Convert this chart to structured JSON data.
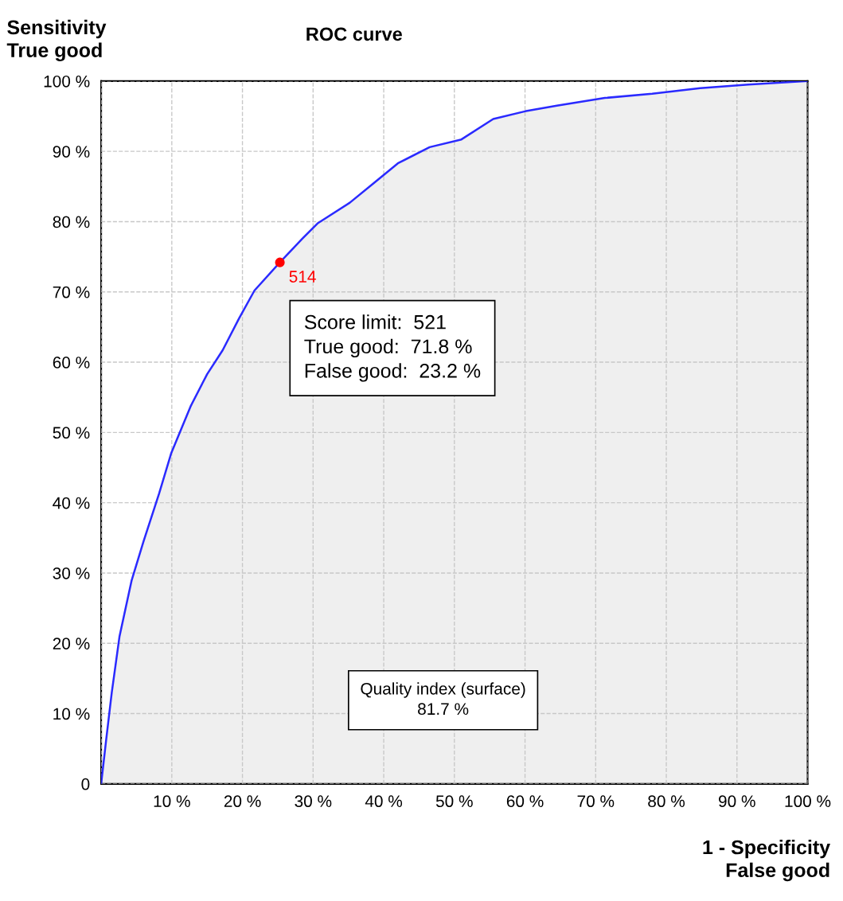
{
  "chart_data": {
    "type": "area",
    "title": "ROC curve",
    "xlabel": "1 - Specificity\nFalse good",
    "ylabel": "Sensitivity\nTrue good",
    "xlim": [
      0,
      100
    ],
    "ylim": [
      0,
      100
    ],
    "xticks": [
      {
        "value": 0,
        "label": null
      },
      {
        "value": 10,
        "label": "10 %"
      },
      {
        "value": 20,
        "label": "20 %"
      },
      {
        "value": 30,
        "label": "30 %"
      },
      {
        "value": 40,
        "label": "40 %"
      },
      {
        "value": 50,
        "label": "50 %"
      },
      {
        "value": 60,
        "label": "60 %"
      },
      {
        "value": 70,
        "label": "70 %"
      },
      {
        "value": 80,
        "label": "80 %"
      },
      {
        "value": 90,
        "label": "90 %"
      },
      {
        "value": 100,
        "label": "100 %"
      }
    ],
    "yticks": [
      {
        "value": 0,
        "label": "0"
      },
      {
        "value": 10,
        "label": "10 %"
      },
      {
        "value": 20,
        "label": "20 %"
      },
      {
        "value": 30,
        "label": "30 %"
      },
      {
        "value": 40,
        "label": "40 %"
      },
      {
        "value": 50,
        "label": "50 %"
      },
      {
        "value": 60,
        "label": "60 %"
      },
      {
        "value": 70,
        "label": "70 %"
      },
      {
        "value": 80,
        "label": "80 %"
      },
      {
        "value": 90,
        "label": "90 %"
      },
      {
        "value": 100,
        "label": "100 %"
      }
    ],
    "grid": true,
    "legend": false,
    "marker": "none",
    "line_style": "solid",
    "series": [
      {
        "color": "#2a2aff",
        "x": [
          0,
          0.7,
          1.5,
          2.6,
          4.3,
          6.0,
          8.2,
          9.9,
          12.7,
          15.0,
          17.2,
          19.5,
          21.7,
          25.3,
          28.5,
          30.7,
          35.2,
          38.6,
          42,
          46.5,
          51,
          55.5,
          60,
          64.5,
          71.3,
          78,
          84.8,
          91.6,
          100
        ],
        "values": [
          0,
          6.2,
          13,
          21,
          28.9,
          34.5,
          41.3,
          47,
          53.8,
          58.3,
          61.7,
          66.2,
          70.2,
          74.2,
          77.6,
          79.8,
          82.7,
          85.5,
          88.3,
          90.6,
          91.7,
          94.6,
          95.7,
          96.5,
          97.6,
          98.2,
          99,
          99.5,
          100
        ]
      },
      {
        "type": "scatter",
        "marker": "circle",
        "color": "#ff0000",
        "x": [
          25.3
        ],
        "values": [
          74.2
        ]
      }
    ],
    "annotations": [
      {
        "text": "514",
        "x": 25.3,
        "y": 74.2
      },
      "Score limit:  521\nTrue good:  71.8 %\nFalse good:  23.2 %",
      "Quality index (surface)\n81.7 %"
    ]
  }
}
